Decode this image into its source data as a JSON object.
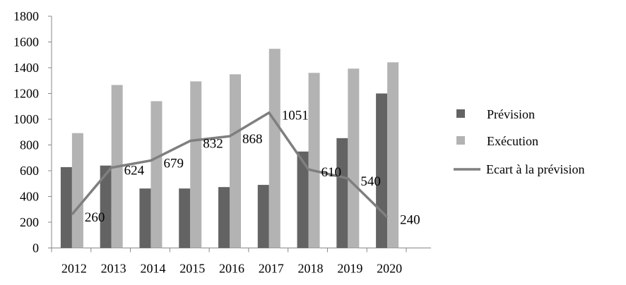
{
  "chart_data": {
    "type": "bar",
    "title": "",
    "xlabel": "",
    "ylabel": "",
    "ylim": [
      0,
      1800
    ],
    "yticks": [
      0,
      200,
      400,
      600,
      800,
      1000,
      1200,
      1400,
      1600,
      1800
    ],
    "categories": [
      "2012",
      "2013",
      "2014",
      "2015",
      "2016",
      "2017",
      "2018",
      "2019",
      "2020"
    ],
    "series": [
      {
        "name": "Prévision",
        "kind": "bar",
        "color": "#636363",
        "values": [
          628,
          640,
          462,
          462,
          473,
          490,
          749,
          853,
          1200
        ]
      },
      {
        "name": "Exécution",
        "kind": "bar",
        "color": "#b3b3b3",
        "values": [
          892,
          1266,
          1140,
          1294,
          1349,
          1547,
          1360,
          1393,
          1442
        ]
      },
      {
        "name": "Ecart à la prévision",
        "kind": "line",
        "color": "#7f7f7f",
        "values": [
          260,
          624,
          679,
          832,
          868,
          1051,
          610,
          540,
          240
        ],
        "data_labels": [
          "260",
          "624",
          "679",
          "832",
          "868",
          "1051",
          "610",
          "540",
          "240"
        ]
      }
    ],
    "grid": false,
    "legend": "right"
  }
}
